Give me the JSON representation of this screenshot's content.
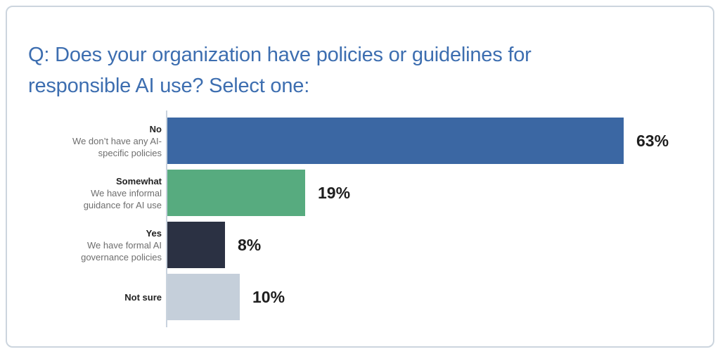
{
  "title": "Q: Does your organization have policies or guidelines for responsible AI use? Select one:",
  "colors": {
    "title_color": "#3d6eb0",
    "card_border": "#ccd5de",
    "axis_color": "#c9d3de",
    "label_color": "#222222",
    "sublabel_color": "#6e6e6e",
    "value_color": "#1e1e1e",
    "bar_no": "#3b67a3",
    "bar_somewhat": "#57ab7f",
    "bar_yes": "#2b3143",
    "bar_not_sure": "#c5cfda"
  },
  "chart_data": {
    "type": "bar",
    "orientation": "horizontal",
    "title": "Q: Does your organization have policies or guidelines for responsible AI use? Select one:",
    "xlabel": "",
    "ylabel": "",
    "value_unit": "%",
    "xlim": [
      0,
      74
    ],
    "grid": false,
    "legend": false,
    "categories": [
      "No",
      "Somewhat",
      "Yes",
      "Not sure"
    ],
    "values": [
      63,
      19,
      8,
      10
    ],
    "rows": [
      {
        "label": "No",
        "sublabel": "We don’t have any AI-specific policies",
        "value": 63,
        "value_label": "63%",
        "color": "#3b67a3"
      },
      {
        "label": "Somewhat",
        "sublabel": "We have informal guidance for AI use",
        "value": 19,
        "value_label": "19%",
        "color": "#57ab7f"
      },
      {
        "label": "Yes",
        "sublabel": "We have formal AI governance policies",
        "value": 8,
        "value_label": "8%",
        "color": "#2b3143"
      },
      {
        "label": "Not sure",
        "sublabel": "",
        "value": 10,
        "value_label": "10%",
        "color": "#c5cfda"
      }
    ]
  }
}
